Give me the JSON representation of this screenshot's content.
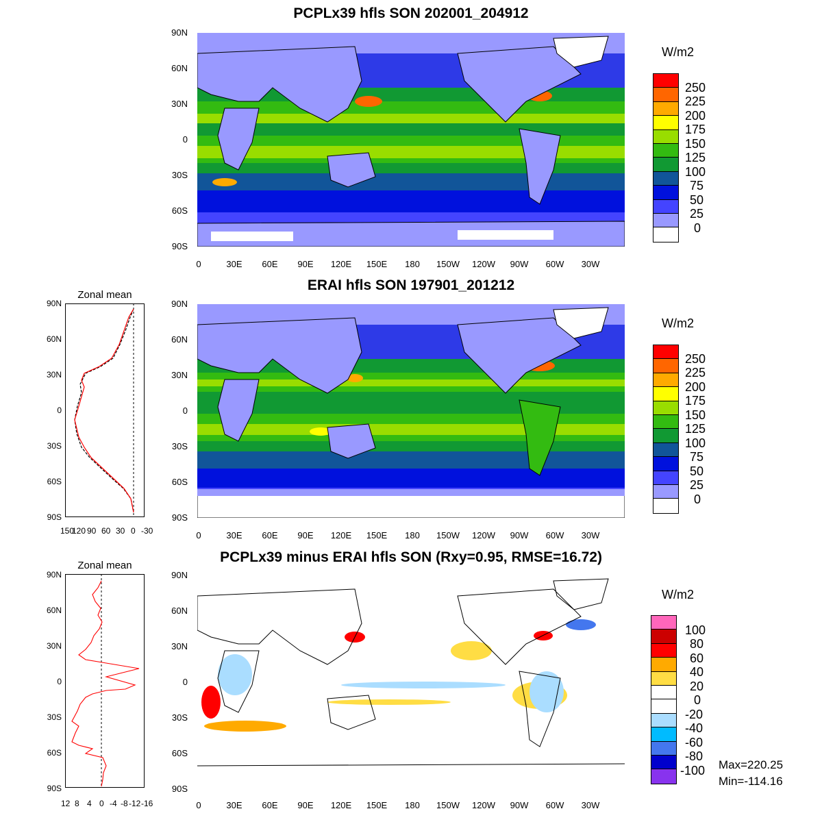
{
  "panels": [
    {
      "title": "PCPLx39 hfls SON 202001_204912",
      "units": "W/m2",
      "levels": [
        "250",
        "225",
        "200",
        "175",
        "150",
        "125",
        "100",
        "75",
        "50",
        "25",
        "0"
      ],
      "colors": [
        "#ff0000",
        "#ff6600",
        "#ffaa00",
        "#ffff00",
        "#99dd00",
        "#33bb11",
        "#119933",
        "#115599",
        "#0011dd",
        "#4444ff",
        "#9999ff",
        "#ffffff"
      ]
    },
    {
      "title": "ERAI hfls SON 197901_201212",
      "units": "W/m2",
      "levels": [
        "250",
        "225",
        "200",
        "175",
        "150",
        "125",
        "100",
        "75",
        "50",
        "25",
        "0"
      ],
      "colors": [
        "#ff0000",
        "#ff6600",
        "#ffaa00",
        "#ffff00",
        "#99dd00",
        "#33bb11",
        "#119933",
        "#115599",
        "#0011dd",
        "#4444ff",
        "#9999ff",
        "#ffffff"
      ]
    },
    {
      "title": "PCPLx39 minus ERAI hfls SON (Rxy=0.95, RMSE=16.72)",
      "units": "W/m2",
      "levels": [
        "100",
        "80",
        "60",
        "40",
        "20",
        "0",
        "-20",
        "-40",
        "-60",
        "-80",
        "-100"
      ],
      "colors": [
        "#ff66bb",
        "#cc0000",
        "#ff0000",
        "#ffaa00",
        "#ffdd44",
        "#ffffff",
        "#ffffff",
        "#aaddff",
        "#00bbff",
        "#4477ee",
        "#0000cc",
        "#8833ee"
      ],
      "max": "Max=220.25",
      "min": "Min=-114.16"
    }
  ],
  "lat_ticks": [
    "90N",
    "60N",
    "30N",
    "0",
    "30S",
    "60S",
    "90S"
  ],
  "lon_ticks": [
    "0",
    "30E",
    "60E",
    "90E",
    "120E",
    "150E",
    "180",
    "150W",
    "120W",
    "90W",
    "60W",
    "30W"
  ],
  "zonal_mean": [
    {
      "title": "Zonal mean",
      "x_ticks": [
        "150",
        "120",
        "90",
        "60",
        "30",
        "0",
        "-30"
      ],
      "lat_ticks": [
        "90N",
        "60N",
        "30N",
        "0",
        "30S",
        "60S",
        "90S"
      ],
      "series_colors": [
        "#000000",
        "#ff0000"
      ]
    },
    {
      "title": "Zonal mean",
      "x_ticks": [
        "12",
        "8",
        "4",
        "0",
        "-4",
        "-8",
        "-12",
        "-16"
      ],
      "lat_ticks": [
        "90N",
        "60N",
        "30N",
        "0",
        "30S",
        "60S",
        "90S"
      ],
      "series_colors": [
        "#ff0000",
        "#000000"
      ]
    }
  ]
}
